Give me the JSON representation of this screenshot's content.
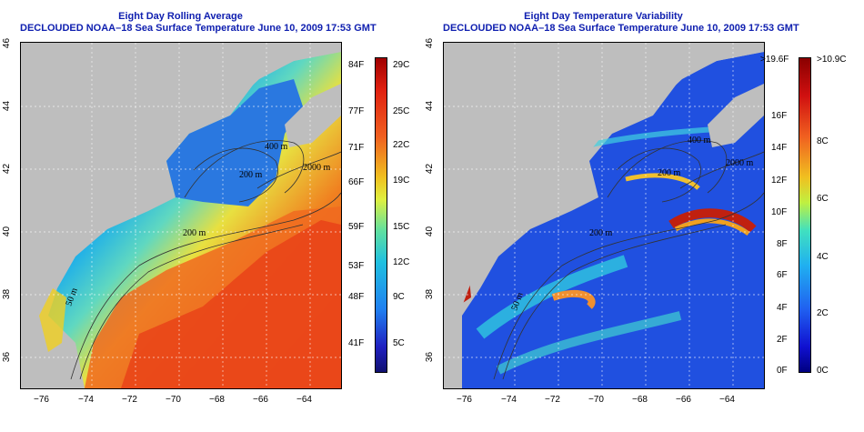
{
  "left": {
    "title": "Eight Day Rolling Average",
    "subtitle": "DECLOUDED NOAA–18 Sea Surface Temperature June 10, 2009 17:53 GMT",
    "colorbar_f": [
      "84F",
      "77F",
      "71F",
      "66F",
      "59F",
      "53F",
      "48F",
      "41F"
    ],
    "colorbar_c": [
      "29C",
      "25C",
      "22C",
      "19C",
      "15C",
      "12C",
      "9C",
      "5C"
    ],
    "contours": [
      "400 m",
      "2000 m",
      "200 m",
      "200 m",
      "50 m"
    ]
  },
  "right": {
    "title": "Eight Day Temperature Variability",
    "subtitle": "DECLOUDED NOAA–18 Sea Surface Temperature June 10, 2009 17:53 GMT",
    "colorbar_f": [
      ">19.6F",
      "16F",
      "14F",
      "12F",
      "10F",
      "8F",
      "6F",
      "4F",
      "2F",
      "0F"
    ],
    "colorbar_c": [
      ">10.9C",
      "8C",
      "6C",
      "4C",
      "2C",
      "0C"
    ],
    "contours": [
      "400 m",
      "2000 m",
      "200 m",
      "200 m",
      "50 m"
    ]
  },
  "axes": {
    "lon_ticks": [
      "−76",
      "−74",
      "−72",
      "−70",
      "−68",
      "−66",
      "−64"
    ],
    "lat_ticks": [
      "46",
      "44",
      "42",
      "40",
      "38",
      "36"
    ]
  },
  "colors": {
    "land": "#bebebe",
    "title": "#1020b0"
  }
}
